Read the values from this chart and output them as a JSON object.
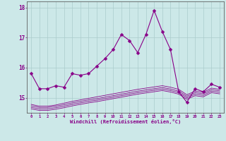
{
  "xlabel": "Windchill (Refroidissement éolien,°C)",
  "background_color": "#cce8e8",
  "grid_color": "#aacccc",
  "line_color": "#880088",
  "x": [
    0,
    1,
    2,
    3,
    4,
    5,
    6,
    7,
    8,
    9,
    10,
    11,
    12,
    13,
    14,
    15,
    16,
    17,
    18,
    19,
    20,
    21,
    22,
    23
  ],
  "main": [
    15.8,
    15.3,
    15.3,
    15.4,
    15.35,
    15.8,
    15.75,
    15.8,
    16.05,
    16.3,
    16.6,
    17.1,
    16.9,
    16.5,
    17.1,
    17.9,
    17.2,
    16.6,
    15.2,
    14.85,
    15.3,
    15.2,
    15.45,
    15.35
  ],
  "line2": [
    14.78,
    14.72,
    14.72,
    14.76,
    14.82,
    14.88,
    14.93,
    14.98,
    15.03,
    15.08,
    15.13,
    15.18,
    15.23,
    15.28,
    15.32,
    15.36,
    15.4,
    15.35,
    15.28,
    15.1,
    15.22,
    15.18,
    15.32,
    15.28
  ],
  "line3": [
    14.73,
    14.68,
    14.68,
    14.72,
    14.77,
    14.83,
    14.88,
    14.93,
    14.97,
    15.02,
    15.07,
    15.12,
    15.17,
    15.22,
    15.26,
    15.3,
    15.34,
    15.29,
    15.22,
    15.05,
    15.17,
    15.13,
    15.27,
    15.23
  ],
  "line4": [
    14.68,
    14.63,
    14.63,
    14.67,
    14.72,
    14.78,
    14.83,
    14.88,
    14.92,
    14.97,
    15.02,
    15.07,
    15.12,
    15.17,
    15.21,
    15.25,
    15.29,
    15.24,
    15.17,
    15.0,
    15.12,
    15.08,
    15.22,
    15.18
  ],
  "line5": [
    14.63,
    14.58,
    14.58,
    14.62,
    14.67,
    14.73,
    14.78,
    14.83,
    14.87,
    14.92,
    14.97,
    15.02,
    15.07,
    15.12,
    15.16,
    15.2,
    15.24,
    15.19,
    15.12,
    14.95,
    15.07,
    15.03,
    15.17,
    15.13
  ],
  "ylim": [
    14.5,
    18.2
  ],
  "yticks": [
    15,
    16,
    17,
    18
  ],
  "xticks": [
    0,
    1,
    2,
    3,
    4,
    5,
    6,
    7,
    8,
    9,
    10,
    11,
    12,
    13,
    14,
    15,
    16,
    17,
    18,
    19,
    20,
    21,
    22,
    23
  ],
  "markersize": 2.5,
  "linewidth": 0.8
}
